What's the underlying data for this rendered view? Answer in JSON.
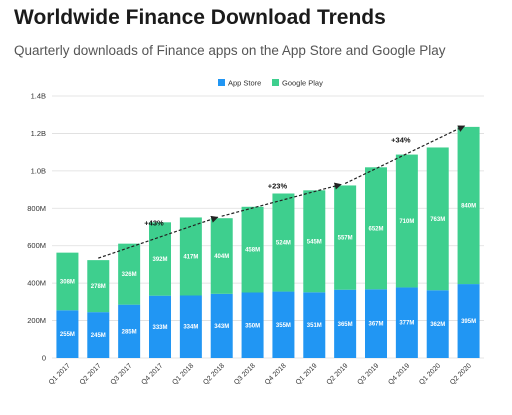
{
  "header": {
    "title": "Worldwide Finance Download Trends",
    "subtitle": "Quarterly downloads of Finance apps on the App Store and Google Play"
  },
  "colors": {
    "app_store": "#2196f3",
    "google_play": "#3ecf8e",
    "grid": "#dddddd",
    "arrow": "#222222"
  },
  "chart_data": {
    "type": "bar",
    "stacked": true,
    "title": "Worldwide Finance Download Trends",
    "subtitle": "Quarterly downloads of Finance apps on the App Store and Google Play",
    "categories": [
      "Q1 2017",
      "Q2 2017",
      "Q3 2017",
      "Q4 2017",
      "Q1 2018",
      "Q2 2018",
      "Q3 2018",
      "Q4 2018",
      "Q1 2019",
      "Q2 2019",
      "Q3 2019",
      "Q4 2019",
      "Q1 2020",
      "Q2 2020"
    ],
    "series": [
      {
        "name": "App Store",
        "values": [
          255,
          245,
          285,
          333,
          334,
          343,
          350,
          355,
          351,
          365,
          367,
          377,
          362,
          395
        ],
        "labels": [
          "255M",
          "245M",
          "285M",
          "333M",
          "334M",
          "343M",
          "350M",
          "355M",
          "351M",
          "365M",
          "367M",
          "377M",
          "362M",
          "395M"
        ]
      },
      {
        "name": "Google Play",
        "values": [
          308,
          278,
          326,
          392,
          417,
          404,
          458,
          524,
          545,
          557,
          652,
          710,
          763,
          840
        ],
        "labels": [
          "308M",
          "278M",
          "326M",
          "392M",
          "417M",
          "404M",
          "458M",
          "524M",
          "545M",
          "557M",
          "652M",
          "710M",
          "763M",
          "840M"
        ]
      }
    ],
    "ylim": [
      0,
      1400
    ],
    "yticks": [
      0,
      200,
      400,
      600,
      800,
      1000,
      1200,
      1400
    ],
    "ytick_labels": [
      "0",
      "200M",
      "400M",
      "600M",
      "800M",
      "1.0B",
      "1.2B",
      "1.4B"
    ],
    "grid": true,
    "legend": "top-center",
    "annotations": [
      {
        "text": "+43%",
        "from_index": 1,
        "to_index": 5
      },
      {
        "text": "+23%",
        "from_index": 5,
        "to_index": 9
      },
      {
        "text": "+34%",
        "from_index": 9,
        "to_index": 13
      }
    ]
  }
}
